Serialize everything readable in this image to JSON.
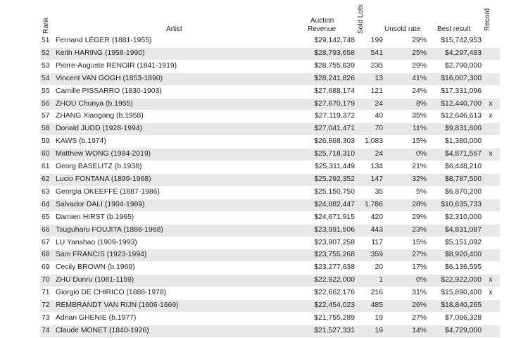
{
  "headers": {
    "rank": "Rank",
    "artist": "Artist",
    "revenue_line1": "Auction",
    "revenue_line2": "Revenue",
    "sold_lots": "Sold Lots",
    "unsold_rate": "Unsold rate",
    "best_result": "Best result",
    "record": "Record"
  },
  "rows": [
    {
      "rank": "51",
      "artist": "Fernand LÉGER (1881-1955)",
      "revenue": "$29,142,748",
      "lots": "199",
      "unsold": "29%",
      "best": "$15,742,953",
      "record": ""
    },
    {
      "rank": "52",
      "artist": "Keith HARING (1958-1990)",
      "revenue": "$28,793,658",
      "lots": "541",
      "unsold": "25%",
      "best": "$4,297,483",
      "record": ""
    },
    {
      "rank": "53",
      "artist": "Pierre-Auguste RENOIR (1841-1919)",
      "revenue": "$28,755,839",
      "lots": "235",
      "unsold": "29%",
      "best": "$2,790,000",
      "record": ""
    },
    {
      "rank": "54",
      "artist": "Vincent VAN GOGH (1853-1890)",
      "revenue": "$28,241,826",
      "lots": "13",
      "unsold": "41%",
      "best": "$16,007,300",
      "record": ""
    },
    {
      "rank": "55",
      "artist": "Camille PISSARRO (1830-1903)",
      "revenue": "$27,688,174",
      "lots": "121",
      "unsold": "24%",
      "best": "$17,331,096",
      "record": ""
    },
    {
      "rank": "56",
      "artist": "ZHOU Chunya (b.1955)",
      "revenue": "$27,670,179",
      "lots": "24",
      "unsold": "8%",
      "best": "$12,440,700",
      "record": "x"
    },
    {
      "rank": "57",
      "artist": "ZHANG Xiaogang (b.1958)",
      "revenue": "$27,119,372",
      "lots": "40",
      "unsold": "35%",
      "best": "$12,646,613",
      "record": "x"
    },
    {
      "rank": "58",
      "artist": "Donald JUDD (1928-1994)",
      "revenue": "$27,041,471",
      "lots": "70",
      "unsold": "11%",
      "best": "$9,831,600",
      "record": ""
    },
    {
      "rank": "59",
      "artist": "KAWS (b.1974)",
      "revenue": "$26,868,303",
      "lots": "1,083",
      "unsold": "15%",
      "best": "$1,380,000",
      "record": ""
    },
    {
      "rank": "60",
      "artist": "Matthew WONG (1984-2019)",
      "revenue": "$25,718,310",
      "lots": "24",
      "unsold": "0%",
      "best": "$4,871,567",
      "record": "x"
    },
    {
      "rank": "61",
      "artist": "Georg BASELITZ (b.1938)",
      "revenue": "$25,311,449",
      "lots": "134",
      "unsold": "21%",
      "best": "$6,448,210",
      "record": ""
    },
    {
      "rank": "62",
      "artist": "Lucio FONTANA (1899-1968)",
      "revenue": "$25,292,352",
      "lots": "147",
      "unsold": "32%",
      "best": "$8,787,500",
      "record": ""
    },
    {
      "rank": "63",
      "artist": "Georgia OKEEFFE (1887-1986)",
      "revenue": "$25,150,750",
      "lots": "35",
      "unsold": "5%",
      "best": "$6,870,200",
      "record": ""
    },
    {
      "rank": "64",
      "artist": "Salvador DALI (1904-1989)",
      "revenue": "$24,882,447",
      "lots": "1,786",
      "unsold": "28%",
      "best": "$10,635,733",
      "record": ""
    },
    {
      "rank": "65",
      "artist": "Damien HIRST (b.1965)",
      "revenue": "$24,671,915",
      "lots": "420",
      "unsold": "29%",
      "best": "$2,310,000",
      "record": ""
    },
    {
      "rank": "66",
      "artist": "Tsuguharu FOUJITA (1886-1968)",
      "revenue": "$23,991,506",
      "lots": "443",
      "unsold": "23%",
      "best": "$4,831,087",
      "record": ""
    },
    {
      "rank": "67",
      "artist": "LU Yanshao (1909-1993)",
      "revenue": "$23,907,258",
      "lots": "117",
      "unsold": "15%",
      "best": "$5,151,092",
      "record": ""
    },
    {
      "rank": "68",
      "artist": "Sam FRANCIS (1923-1994)",
      "revenue": "$23,755,268",
      "lots": "359",
      "unsold": "27%",
      "best": "$8,920,400",
      "record": ""
    },
    {
      "rank": "69",
      "artist": "Cecily BROWN (b.1969)",
      "revenue": "$23,277,638",
      "lots": "20",
      "unsold": "17%",
      "best": "$6,136,595",
      "record": ""
    },
    {
      "rank": "70",
      "artist": "ZHU Dunru (1081-1159)",
      "revenue": "$22,922,000",
      "lots": "1",
      "unsold": "0%",
      "best": "$22,922,000",
      "record": "x"
    },
    {
      "rank": "71",
      "artist": "Giorgio DE CHIRICO (1888-1978)",
      "revenue": "$22,662,176",
      "lots": "216",
      "unsold": "31%",
      "best": "$15,890,400",
      "record": "x"
    },
    {
      "rank": "72",
      "artist": "REMBRANDT VAN RIJN (1606-1669)",
      "revenue": "$22,454,023",
      "lots": "485",
      "unsold": "26%",
      "best": "$18,840,265",
      "record": ""
    },
    {
      "rank": "73",
      "artist": "Adrian GHENIE (b.1977)",
      "revenue": "$21,755,289",
      "lots": "19",
      "unsold": "27%",
      "best": "$7,086,328",
      "record": ""
    },
    {
      "rank": "74",
      "artist": "Claude MONET (1840-1926)",
      "revenue": "$21,527,331",
      "lots": "19",
      "unsold": "14%",
      "best": "$4,729,000",
      "record": ""
    }
  ]
}
